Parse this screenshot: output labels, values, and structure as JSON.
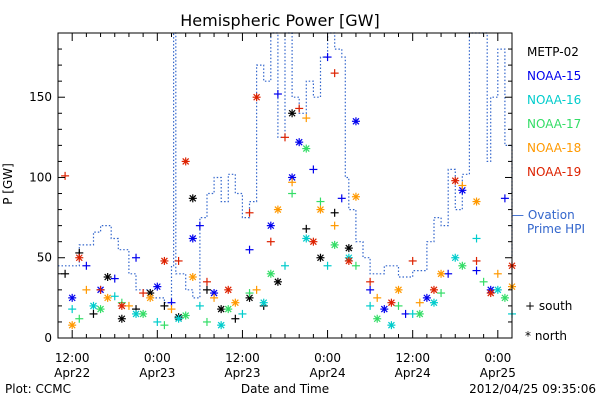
{
  "chart_data": {
    "type": "scatter",
    "title": "Hemispheric Power [GW]",
    "ylabel": "P [GW]",
    "xlabel": "Date and Time",
    "ylim": [
      0,
      190
    ],
    "yticks": [
      0,
      50,
      100,
      150
    ],
    "xlim_hours": [
      -2,
      62
    ],
    "xticks": [
      {
        "h": 0,
        "time": "12:00",
        "day": "Apr22"
      },
      {
        "h": 12,
        "time": "0:00",
        "day": "Apr23"
      },
      {
        "h": 24,
        "time": "12:00",
        "day": "Apr23"
      },
      {
        "h": 36,
        "time": "0:00",
        "day": "Apr24"
      },
      {
        "h": 48,
        "time": "12:00",
        "day": "Apr24"
      },
      {
        "h": 60,
        "time": "0:00",
        "day": "Apr25"
      }
    ],
    "series": [
      {
        "name": "METP-02",
        "color": "#000000",
        "points": [
          {
            "h": -1,
            "v": 40,
            "m": "+"
          },
          {
            "h": 1,
            "v": 53,
            "m": "+"
          },
          {
            "h": 3,
            "v": 15,
            "m": "+"
          },
          {
            "h": 5,
            "v": 38,
            "m": "*"
          },
          {
            "h": 7,
            "v": 12,
            "m": "*"
          },
          {
            "h": 9,
            "v": 18,
            "m": "+"
          },
          {
            "h": 11,
            "v": 28,
            "m": "*"
          },
          {
            "h": 13,
            "v": 20,
            "m": "+"
          },
          {
            "h": 15,
            "v": 13,
            "m": "*"
          },
          {
            "h": 17,
            "v": 87,
            "m": "*"
          },
          {
            "h": 19,
            "v": 30,
            "m": "+"
          },
          {
            "h": 21,
            "v": 18,
            "m": "*"
          },
          {
            "h": 23,
            "v": 12,
            "m": "+"
          },
          {
            "h": 25,
            "v": 25,
            "m": "*"
          },
          {
            "h": 27,
            "v": 20,
            "m": "+"
          },
          {
            "h": 29,
            "v": 35,
            "m": "*"
          },
          {
            "h": 31,
            "v": 140,
            "m": "*"
          },
          {
            "h": 33,
            "v": 68,
            "m": "+"
          },
          {
            "h": 35,
            "v": 50,
            "m": "*"
          },
          {
            "h": 37,
            "v": 78,
            "m": "+"
          },
          {
            "h": 39,
            "v": 56,
            "m": "*"
          }
        ]
      },
      {
        "name": "NOAA-15",
        "color": "#0000ee",
        "points": [
          {
            "h": 0,
            "v": 25,
            "m": "*"
          },
          {
            "h": 2,
            "v": 45,
            "m": "+"
          },
          {
            "h": 4,
            "v": 30,
            "m": "*"
          },
          {
            "h": 6,
            "v": 37,
            "m": "+"
          },
          {
            "h": 9,
            "v": 50,
            "m": "+"
          },
          {
            "h": 12,
            "v": 32,
            "m": "*"
          },
          {
            "h": 14,
            "v": 22,
            "m": "+"
          },
          {
            "h": 17,
            "v": 62,
            "m": "*"
          },
          {
            "h": 18,
            "v": 70,
            "m": "+"
          },
          {
            "h": 20,
            "v": 28,
            "m": "*"
          },
          {
            "h": 25,
            "v": 55,
            "m": "+"
          },
          {
            "h": 28,
            "v": 70,
            "m": "*"
          },
          {
            "h": 29,
            "v": 152,
            "m": "+"
          },
          {
            "h": 31,
            "v": 100,
            "m": "*"
          },
          {
            "h": 32,
            "v": 122,
            "m": "*"
          },
          {
            "h": 34,
            "v": 105,
            "m": "+"
          },
          {
            "h": 36,
            "v": 175,
            "m": "+"
          },
          {
            "h": 38,
            "v": 87,
            "m": "+"
          },
          {
            "h": 40,
            "v": 135,
            "m": "*"
          },
          {
            "h": 42,
            "v": 30,
            "m": "+"
          },
          {
            "h": 44,
            "v": 18,
            "m": "*"
          },
          {
            "h": 47,
            "v": 15,
            "m": "+"
          },
          {
            "h": 50,
            "v": 25,
            "m": "*"
          },
          {
            "h": 53,
            "v": 40,
            "m": "+"
          },
          {
            "h": 55,
            "v": 92,
            "m": "*"
          },
          {
            "h": 57,
            "v": 42,
            "m": "+"
          },
          {
            "h": 59,
            "v": 30,
            "m": "*"
          },
          {
            "h": 61,
            "v": 87,
            "m": "+"
          }
        ]
      },
      {
        "name": "NOAA-16",
        "color": "#00cccc",
        "points": [
          {
            "h": 0,
            "v": 18,
            "m": "+"
          },
          {
            "h": 3,
            "v": 20,
            "m": "*"
          },
          {
            "h": 6,
            "v": 26,
            "m": "+"
          },
          {
            "h": 9,
            "v": 15,
            "m": "*"
          },
          {
            "h": 12,
            "v": 10,
            "m": "+"
          },
          {
            "h": 15,
            "v": 12,
            "m": "*"
          },
          {
            "h": 18,
            "v": 20,
            "m": "+"
          },
          {
            "h": 21,
            "v": 8,
            "m": "*"
          },
          {
            "h": 24,
            "v": 15,
            "m": "+"
          },
          {
            "h": 27,
            "v": 22,
            "m": "*"
          },
          {
            "h": 30,
            "v": 45,
            "m": "+"
          },
          {
            "h": 33,
            "v": 62,
            "m": "*"
          },
          {
            "h": 36,
            "v": 45,
            "m": "+"
          },
          {
            "h": 39,
            "v": 50,
            "m": "*"
          },
          {
            "h": 42,
            "v": 20,
            "m": "+"
          },
          {
            "h": 45,
            "v": 8,
            "m": "*"
          },
          {
            "h": 48,
            "v": 15,
            "m": "+"
          },
          {
            "h": 51,
            "v": 22,
            "m": "*"
          },
          {
            "h": 54,
            "v": 50,
            "m": "*"
          },
          {
            "h": 57,
            "v": 62,
            "m": "+"
          },
          {
            "h": 60,
            "v": 30,
            "m": "*"
          },
          {
            "h": 62,
            "v": 15,
            "m": "+"
          }
        ]
      },
      {
        "name": "NOAA-17",
        "color": "#33dd66",
        "points": [
          {
            "h": 1,
            "v": 12,
            "m": "+"
          },
          {
            "h": 4,
            "v": 18,
            "m": "*"
          },
          {
            "h": 7,
            "v": 22,
            "m": "+"
          },
          {
            "h": 10,
            "v": 15,
            "m": "*"
          },
          {
            "h": 13,
            "v": 8,
            "m": "+"
          },
          {
            "h": 16,
            "v": 14,
            "m": "*"
          },
          {
            "h": 19,
            "v": 10,
            "m": "+"
          },
          {
            "h": 22,
            "v": 18,
            "m": "*"
          },
          {
            "h": 25,
            "v": 28,
            "m": "+"
          },
          {
            "h": 28,
            "v": 40,
            "m": "*"
          },
          {
            "h": 31,
            "v": 90,
            "m": "+"
          },
          {
            "h": 33,
            "v": 118,
            "m": "*"
          },
          {
            "h": 35,
            "v": 85,
            "m": "+"
          },
          {
            "h": 37,
            "v": 58,
            "m": "*"
          },
          {
            "h": 40,
            "v": 45,
            "m": "+"
          },
          {
            "h": 43,
            "v": 12,
            "m": "*"
          },
          {
            "h": 46,
            "v": 20,
            "m": "+"
          },
          {
            "h": 49,
            "v": 15,
            "m": "*"
          },
          {
            "h": 52,
            "v": 28,
            "m": "+"
          },
          {
            "h": 55,
            "v": 45,
            "m": "*"
          },
          {
            "h": 58,
            "v": 35,
            "m": "+"
          },
          {
            "h": 61,
            "v": 25,
            "m": "*"
          }
        ]
      },
      {
        "name": "NOAA-18",
        "color": "#ff9900",
        "points": [
          {
            "h": 0,
            "v": 8,
            "m": "*"
          },
          {
            "h": 2,
            "v": 30,
            "m": "+"
          },
          {
            "h": 5,
            "v": 25,
            "m": "*"
          },
          {
            "h": 8,
            "v": 20,
            "m": "+"
          },
          {
            "h": 11,
            "v": 25,
            "m": "*"
          },
          {
            "h": 14,
            "v": 18,
            "m": "+"
          },
          {
            "h": 17,
            "v": 38,
            "m": "*"
          },
          {
            "h": 20,
            "v": 25,
            "m": "+"
          },
          {
            "h": 23,
            "v": 22,
            "m": "*"
          },
          {
            "h": 26,
            "v": 30,
            "m": "+"
          },
          {
            "h": 29,
            "v": 80,
            "m": "*"
          },
          {
            "h": 31,
            "v": 97,
            "m": "+"
          },
          {
            "h": 33,
            "v": 137,
            "m": "+"
          },
          {
            "h": 35,
            "v": 80,
            "m": "*"
          },
          {
            "h": 37,
            "v": 70,
            "m": "+"
          },
          {
            "h": 40,
            "v": 88,
            "m": "*"
          },
          {
            "h": 43,
            "v": 25,
            "m": "+"
          },
          {
            "h": 46,
            "v": 30,
            "m": "*"
          },
          {
            "h": 49,
            "v": 22,
            "m": "+"
          },
          {
            "h": 52,
            "v": 40,
            "m": "*"
          },
          {
            "h": 55,
            "v": 95,
            "m": "+"
          },
          {
            "h": 57,
            "v": 85,
            "m": "*"
          },
          {
            "h": 60,
            "v": 40,
            "m": "+"
          },
          {
            "h": 62,
            "v": 32,
            "m": "*"
          }
        ]
      },
      {
        "name": "NOAA-19",
        "color": "#dd2200",
        "points": [
          {
            "h": -1,
            "v": 101,
            "m": "+"
          },
          {
            "h": 1,
            "v": 50,
            "m": "*"
          },
          {
            "h": 4,
            "v": 30,
            "m": "+"
          },
          {
            "h": 7,
            "v": 20,
            "m": "*"
          },
          {
            "h": 10,
            "v": 28,
            "m": "+"
          },
          {
            "h": 13,
            "v": 48,
            "m": "*"
          },
          {
            "h": 15,
            "v": 48,
            "m": "+"
          },
          {
            "h": 16,
            "v": 110,
            "m": "*"
          },
          {
            "h": 19,
            "v": 35,
            "m": "+"
          },
          {
            "h": 22,
            "v": 30,
            "m": "*"
          },
          {
            "h": 25,
            "v": 78,
            "m": "+"
          },
          {
            "h": 26,
            "v": 150,
            "m": "*"
          },
          {
            "h": 28,
            "v": 60,
            "m": "+"
          },
          {
            "h": 30,
            "v": 125,
            "m": "+"
          },
          {
            "h": 32,
            "v": 143,
            "m": "+"
          },
          {
            "h": 34,
            "v": 60,
            "m": "*"
          },
          {
            "h": 37,
            "v": 165,
            "m": "+"
          },
          {
            "h": 39,
            "v": 48,
            "m": "*"
          },
          {
            "h": 42,
            "v": 35,
            "m": "+"
          },
          {
            "h": 45,
            "v": 22,
            "m": "*"
          },
          {
            "h": 48,
            "v": 48,
            "m": "+"
          },
          {
            "h": 51,
            "v": 30,
            "m": "*"
          },
          {
            "h": 54,
            "v": 98,
            "m": "*"
          },
          {
            "h": 57,
            "v": 48,
            "m": "+"
          },
          {
            "h": 59,
            "v": 28,
            "m": "*"
          },
          {
            "h": 62,
            "v": 45,
            "m": "*"
          }
        ]
      }
    ],
    "ovation": {
      "name": "Ovation Prime HPI",
      "legend_line1": "— Ovation",
      "legend_line2": "Prime HPI",
      "color": "#3366cc",
      "points": [
        {
          "h": -2,
          "v": 45
        },
        {
          "h": 0,
          "v": 45
        },
        {
          "h": 1,
          "v": 58
        },
        {
          "h": 3,
          "v": 66
        },
        {
          "h": 4,
          "v": 70
        },
        {
          "h": 5.5,
          "v": 62
        },
        {
          "h": 6.5,
          "v": 55
        },
        {
          "h": 8,
          "v": 40
        },
        {
          "h": 9,
          "v": 30
        },
        {
          "h": 11,
          "v": 25
        },
        {
          "h": 13,
          "v": 22
        },
        {
          "h": 14,
          "v": 45
        },
        {
          "h": 14.3,
          "v": 190
        },
        {
          "h": 14.6,
          "v": 40
        },
        {
          "h": 16,
          "v": 30
        },
        {
          "h": 17,
          "v": 25
        },
        {
          "h": 18,
          "v": 75
        },
        {
          "h": 19,
          "v": 90
        },
        {
          "h": 20,
          "v": 100
        },
        {
          "h": 21,
          "v": 85
        },
        {
          "h": 22,
          "v": 102
        },
        {
          "h": 23,
          "v": 90
        },
        {
          "h": 24,
          "v": 75
        },
        {
          "h": 25,
          "v": 85
        },
        {
          "h": 26,
          "v": 170
        },
        {
          "h": 27,
          "v": 160
        },
        {
          "h": 28,
          "v": 190
        },
        {
          "h": 29,
          "v": 125
        },
        {
          "h": 30,
          "v": 190
        },
        {
          "h": 31,
          "v": 150
        },
        {
          "h": 32,
          "v": 140
        },
        {
          "h": 33,
          "v": 160
        },
        {
          "h": 34,
          "v": 150
        },
        {
          "h": 35,
          "v": 175
        },
        {
          "h": 36,
          "v": 190
        },
        {
          "h": 37,
          "v": 180
        },
        {
          "h": 38,
          "v": 175
        },
        {
          "h": 38.5,
          "v": 100
        },
        {
          "h": 39,
          "v": 80
        },
        {
          "h": 40,
          "v": 60
        },
        {
          "h": 41,
          "v": 50
        },
        {
          "h": 42,
          "v": 40
        },
        {
          "h": 44,
          "v": 45
        },
        {
          "h": 46,
          "v": 38
        },
        {
          "h": 48,
          "v": 42
        },
        {
          "h": 50,
          "v": 60
        },
        {
          "h": 51,
          "v": 75
        },
        {
          "h": 52,
          "v": 70
        },
        {
          "h": 53,
          "v": 105
        },
        {
          "h": 54,
          "v": 80
        },
        {
          "h": 55,
          "v": 102
        },
        {
          "h": 56,
          "v": 190
        },
        {
          "h": 57,
          "v": 190
        },
        {
          "h": 58,
          "v": 190
        },
        {
          "h": 58.5,
          "v": 110
        },
        {
          "h": 59,
          "v": 150
        },
        {
          "h": 60,
          "v": 180
        },
        {
          "h": 61,
          "v": 120
        },
        {
          "h": 62,
          "v": 50
        }
      ]
    },
    "marker_legend": [
      {
        "symbol": "+",
        "label": "south"
      },
      {
        "symbol": "*",
        "label": "north"
      }
    ]
  },
  "footer": {
    "plot_credit": "Plot: CCMC",
    "timestamp": "2012/04/25 09:35:06"
  }
}
